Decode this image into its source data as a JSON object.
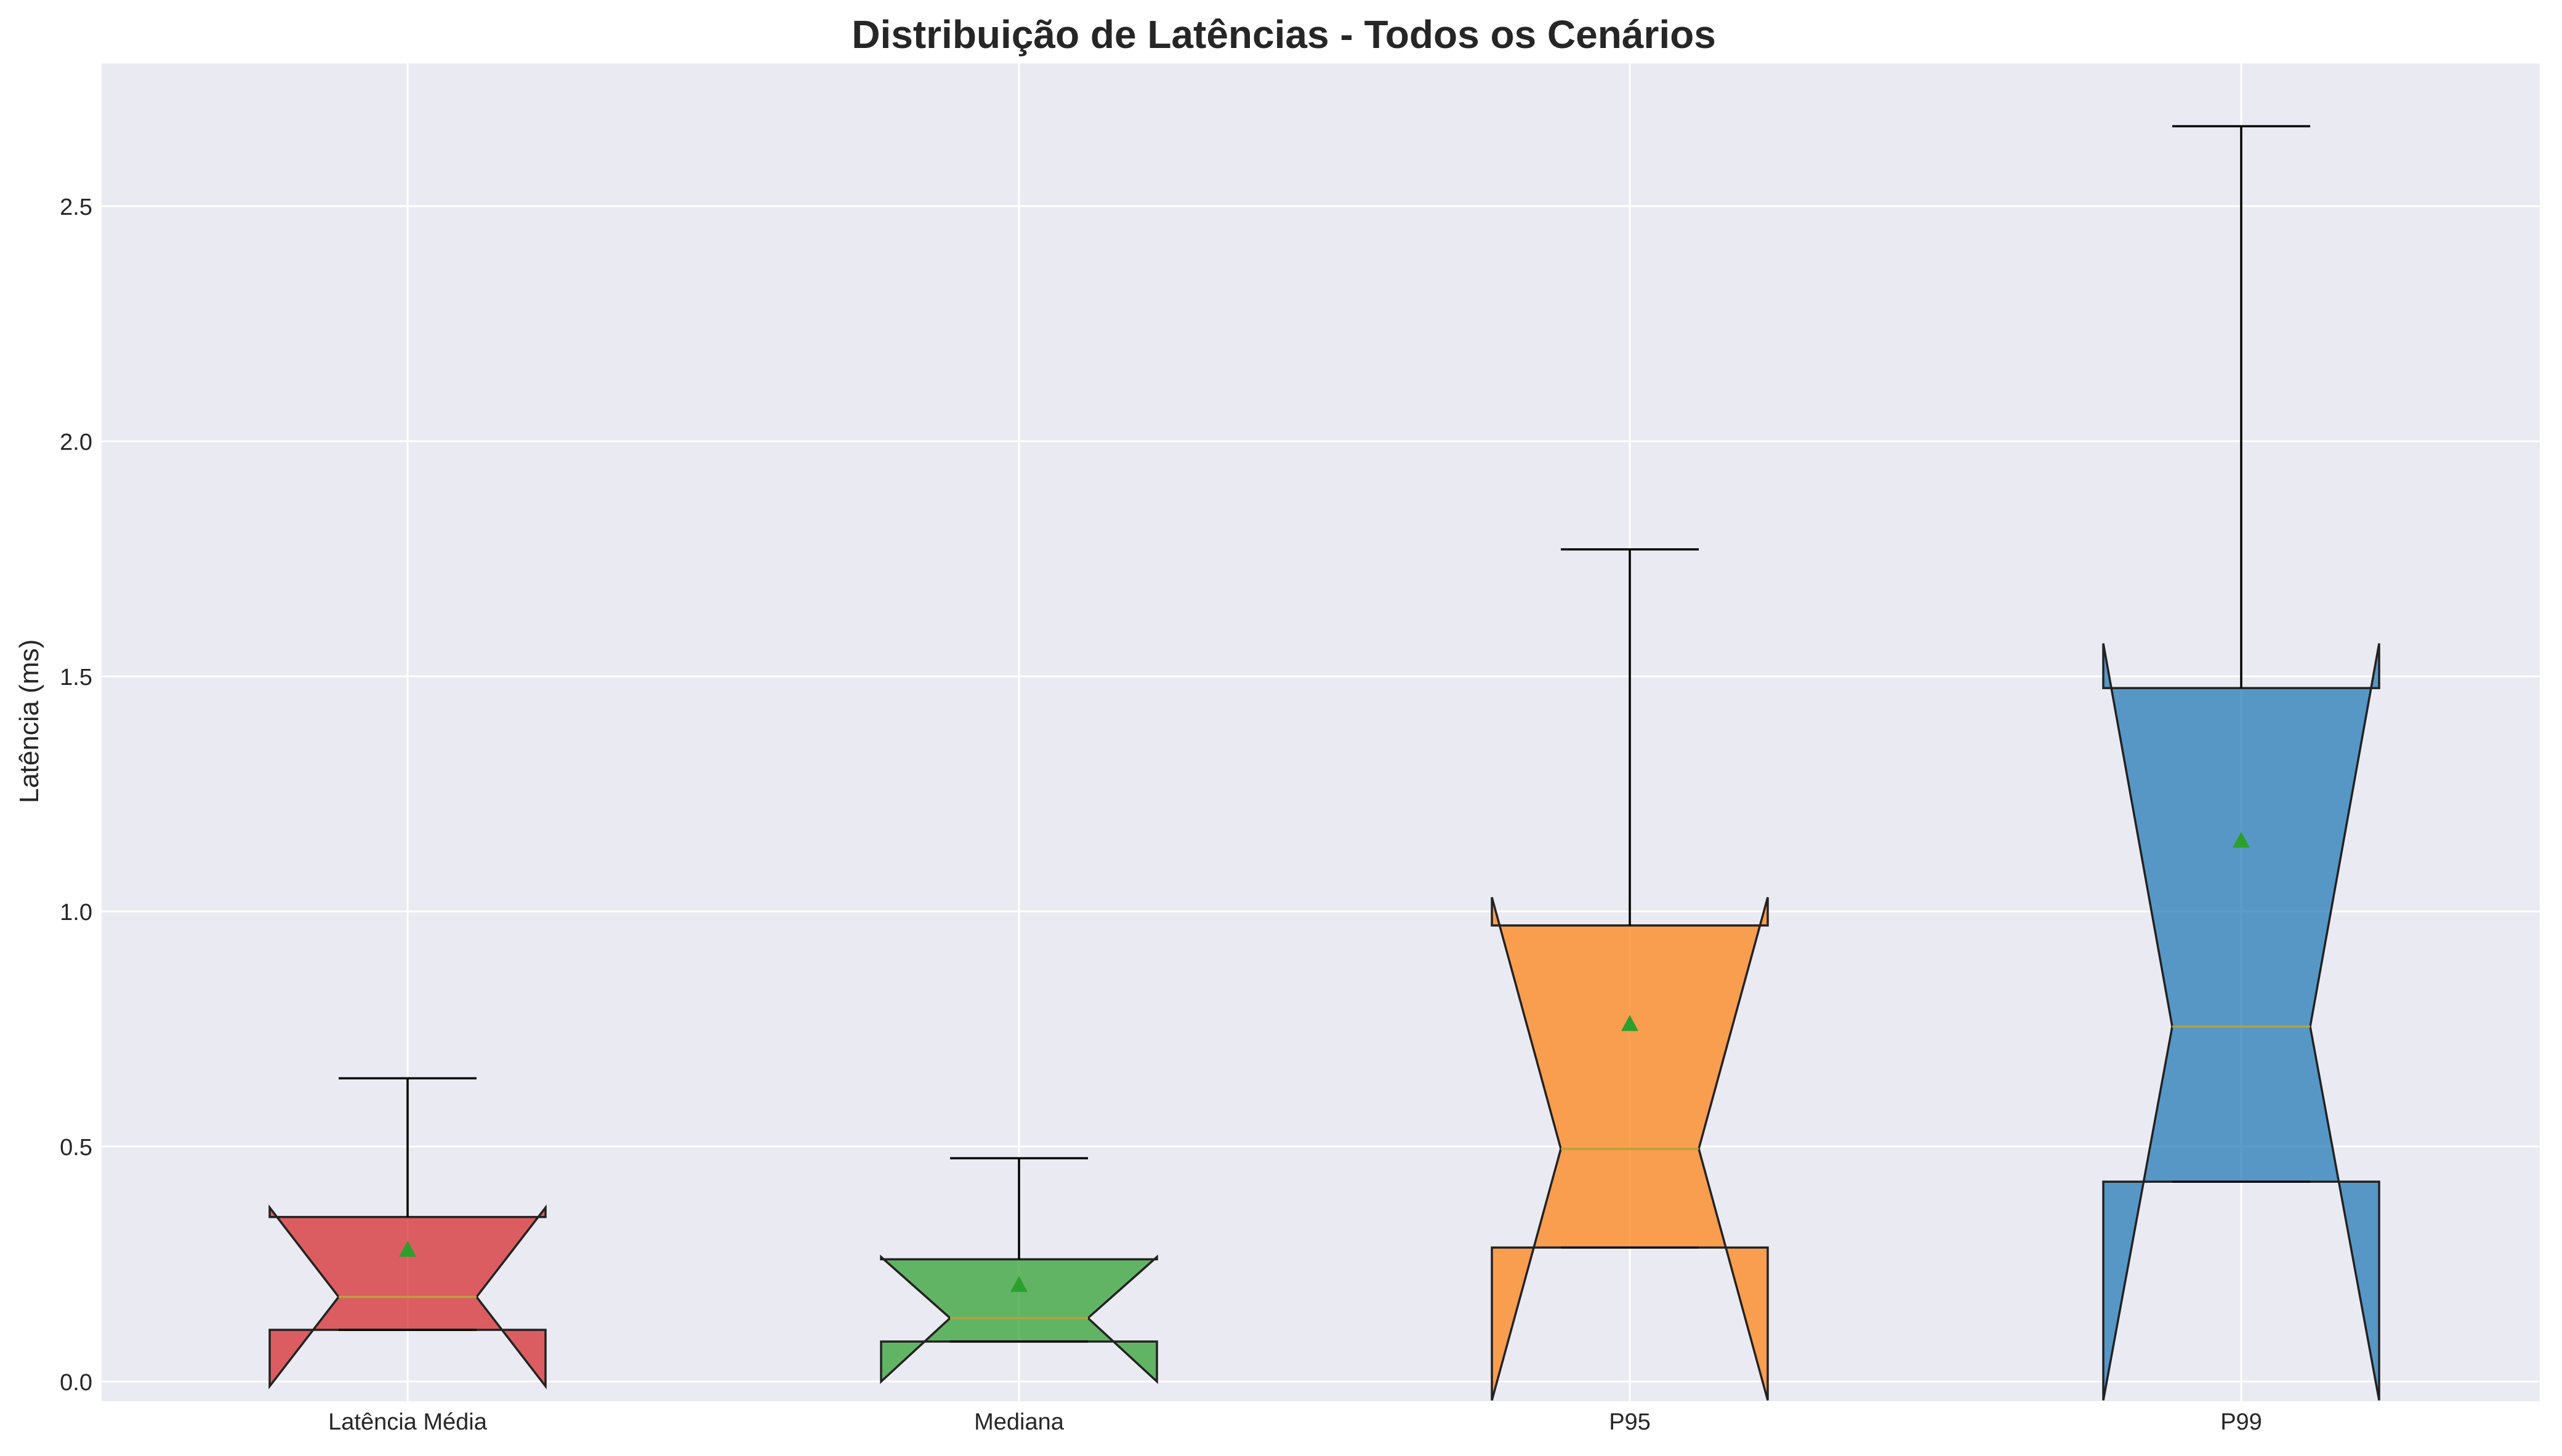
{
  "chart_data": {
    "type": "boxplot",
    "title": "Distribuição de Latências - Todos os Cenários",
    "xlabel": "",
    "ylabel": "Latência (ms)",
    "ylim": [
      -0.04,
      2.84
    ],
    "yticks": [
      0.0,
      0.5,
      1.0,
      1.5,
      2.0,
      2.5
    ],
    "ytick_labels": [
      "0.0",
      "0.5",
      "1.0",
      "1.5",
      "2.0",
      "2.5"
    ],
    "grid": true,
    "notched": true,
    "show_means": true,
    "categories": [
      "Latência Média",
      "Mediana",
      "P95",
      "P99"
    ],
    "series": [
      {
        "category": "Latência Média",
        "color": "#d62728",
        "whisker_low": 0.11,
        "q1": 0.11,
        "median": 0.18,
        "q3": 0.35,
        "whisker_high": 0.645,
        "notch_low": -0.01,
        "notch_high": 0.37,
        "mean": 0.28
      },
      {
        "category": "Mediana",
        "color": "#2ca02c",
        "whisker_low": 0.085,
        "q1": 0.085,
        "median": 0.135,
        "q3": 0.26,
        "whisker_high": 0.475,
        "notch_low": 0.0,
        "notch_high": 0.265,
        "mean": 0.205
      },
      {
        "category": "P95",
        "color": "#ff7f0e",
        "whisker_low": 0.285,
        "q1": 0.285,
        "median": 0.495,
        "q3": 0.97,
        "whisker_high": 1.77,
        "notch_low": -0.04,
        "notch_high": 1.03,
        "mean": 0.76
      },
      {
        "category": "P99",
        "color": "#1f77b4",
        "whisker_low": 0.425,
        "q1": 0.425,
        "median": 0.755,
        "q3": 1.475,
        "whisker_high": 2.67,
        "notch_low": -0.04,
        "notch_high": 1.57,
        "mean": 1.15
      }
    ],
    "colors": {
      "background": "#eaeaf2",
      "grid": "#ffffff",
      "median_line": "#b5a23a",
      "mean_marker": "#2ca02c",
      "edge": "#222222"
    }
  }
}
